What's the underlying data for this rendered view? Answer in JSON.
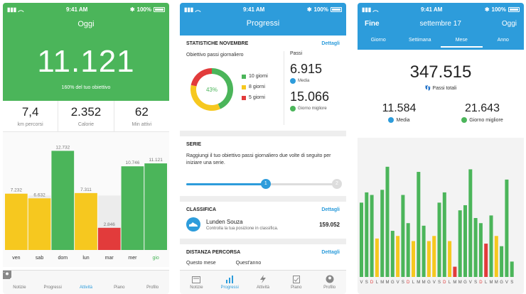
{
  "colors": {
    "green": "#4bb55a",
    "yellow": "#f6c81f",
    "red": "#e23b3b",
    "blue": "#2d9cdb",
    "gray": "#ededed"
  },
  "status": {
    "time": "9:41 AM",
    "battery": "100%"
  },
  "tabs": [
    "Notizie",
    "Progressi",
    "Attività",
    "Piano",
    "Profilo"
  ],
  "phone1": {
    "title": "Oggi",
    "steps": "11.121",
    "goal_text": "160% del tuo obiettivo",
    "stats": [
      {
        "value": "7,4",
        "label": "km percorsi"
      },
      {
        "value": "2.352",
        "label": "Calorie"
      },
      {
        "value": "62",
        "label": "Min attivi"
      }
    ],
    "chart_data": {
      "type": "bar",
      "categories": [
        "ven",
        "sab",
        "dom",
        "lun",
        "mar",
        "mer",
        "gio"
      ],
      "values": [
        7232,
        6632,
        12732,
        7311,
        2846,
        10746,
        11121
      ],
      "value_labels": [
        "7.232",
        "6.632",
        "12.732",
        "7.311",
        "2.846",
        "10.746",
        "11.121"
      ],
      "colors": [
        "#f6c81f",
        "#f6c81f",
        "#4bb55a",
        "#f6c81f",
        "#e23b3b",
        "#4bb55a",
        "#4bb55a"
      ],
      "ylim": [
        0,
        13500
      ],
      "goal": 7000
    }
  },
  "phone2": {
    "title": "Progressi",
    "stats_card": {
      "title": "STATISTICHE NOVEMBRE",
      "link": "Dettagli",
      "goal_label": "Obiettivo passi giornaliero",
      "donut_percent": "43%",
      "legend": [
        "10 giorni",
        "8 giorni",
        "5 giorni"
      ],
      "steps_label": "Passi",
      "average": "6.915",
      "average_label": "Media",
      "best": "15.066",
      "best_label": "Giorno migliore"
    },
    "chart_data": {
      "type": "pie",
      "categories": [
        "10 giorni",
        "8 giorni",
        "5 giorni"
      ],
      "values": [
        10,
        8,
        5
      ],
      "colors": [
        "#4bb55a",
        "#f6c81f",
        "#e23b3b"
      ]
    },
    "serie": {
      "title": "SERIE",
      "text": "Raggiungi il tuo obiettivo passi giornaliero due volte di seguito per iniziare una serie.",
      "step1": "1",
      "step2": "2",
      "progress": 0.52
    },
    "classifica": {
      "title": "CLASSIFICA",
      "link": "Dettagli",
      "name": "Lunden Souza",
      "desc": "Controlla la tua posizione in classifica.",
      "score": "159.052"
    },
    "distanza": {
      "title": "DISTANZA PERCORSA",
      "link": "Dettagli",
      "col1": "Questo mese",
      "col2": "Quest'anno"
    }
  },
  "phone3": {
    "done": "Fine",
    "title": "settembre 17",
    "today": "Oggi",
    "segments": [
      "Giorno",
      "Settimana",
      "Mese",
      "Anno"
    ],
    "total": "347.515",
    "total_label": "Passi totali",
    "average": "11.584",
    "average_label": "Media",
    "best": "21.643",
    "best_label": "Giorno migliore",
    "chart_data": {
      "type": "bar",
      "categories": [
        "V",
        "S",
        "D",
        "L",
        "M",
        "M",
        "G",
        "V",
        "S",
        "D",
        "L",
        "M",
        "M",
        "G",
        "V",
        "S",
        "D",
        "L",
        "M",
        "M",
        "G",
        "V",
        "S",
        "D",
        "L",
        "M",
        "M",
        "G",
        "V",
        "S"
      ],
      "values": [
        14500,
        16500,
        16000,
        7500,
        17000,
        21500,
        9000,
        8000,
        16000,
        10500,
        7000,
        20500,
        10000,
        7000,
        8000,
        14500,
        16500,
        7000,
        2000,
        13000,
        14000,
        21000,
        11500,
        10500,
        6500,
        12000,
        8000,
        6000,
        19000,
        3000
      ],
      "colors": [
        "#4bb55a",
        "#4bb55a",
        "#4bb55a",
        "#f6c81f",
        "#4bb55a",
        "#4bb55a",
        "#4bb55a",
        "#f6c81f",
        "#4bb55a",
        "#4bb55a",
        "#f6c81f",
        "#4bb55a",
        "#4bb55a",
        "#f6c81f",
        "#f6c81f",
        "#4bb55a",
        "#4bb55a",
        "#f6c81f",
        "#e23b3b",
        "#4bb55a",
        "#4bb55a",
        "#4bb55a",
        "#4bb55a",
        "#4bb55a",
        "#e23b3b",
        "#4bb55a",
        "#f6c81f",
        "#4bb55a",
        "#4bb55a",
        "#4bb55a"
      ],
      "ylim": [
        0,
        23000
      ]
    },
    "weekday_labels": [
      "V",
      "S",
      "D",
      "",
      "LMMGVSD",
      "",
      "LMMGVSD",
      "",
      "LMMGVSD",
      "",
      "LMMGVSD"
    ]
  }
}
